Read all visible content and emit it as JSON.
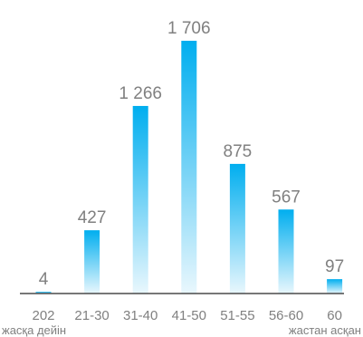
{
  "chart_data": {
    "type": "bar",
    "categories": [
      "202",
      "21-30",
      "31-40",
      "41-50",
      "51-55",
      "56-60",
      "60"
    ],
    "category_sublabels": [
      "жасқа дейін",
      "",
      "",
      "",
      "",
      "",
      "жастан асқан"
    ],
    "values": [
      4,
      427,
      1266,
      1706,
      875,
      567,
      97
    ],
    "value_labels": [
      "4",
      "427",
      "1 266",
      "1 706",
      "875",
      "567",
      "97"
    ],
    "ylim": [
      0,
      1706
    ],
    "grid": false,
    "legend": "none",
    "colors": {
      "bar_top": "#00aeef",
      "bar_bottom": "#e9f7fd",
      "label_text": "#808080",
      "baseline": "#4a4a4a"
    }
  }
}
